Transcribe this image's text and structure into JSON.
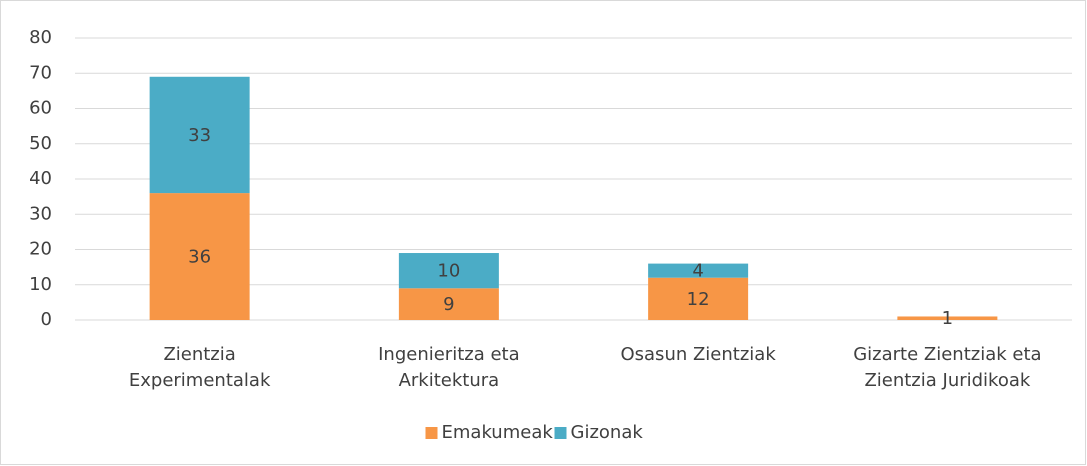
{
  "chart_data": {
    "type": "stacked_bar",
    "categories": [
      [
        "Zientzia",
        "Experimentalak"
      ],
      [
        "Ingenieritza eta",
        "Arkitektura"
      ],
      [
        "Osasun Zientziak"
      ],
      [
        "Gizarte Zientziak eta",
        "Zientzia Juridikoak"
      ]
    ],
    "series": [
      {
        "name": "Emakumeak",
        "color": "#f79646",
        "values": [
          36,
          9,
          12,
          1
        ]
      },
      {
        "name": "Gizonak",
        "color": "#4bacc6",
        "values": [
          33,
          10,
          4,
          null
        ]
      }
    ],
    "ylim": [
      0,
      80
    ],
    "yticks": [
      0,
      10,
      20,
      30,
      40,
      50,
      60,
      70,
      80
    ],
    "grid": true,
    "legend": "bottom"
  }
}
